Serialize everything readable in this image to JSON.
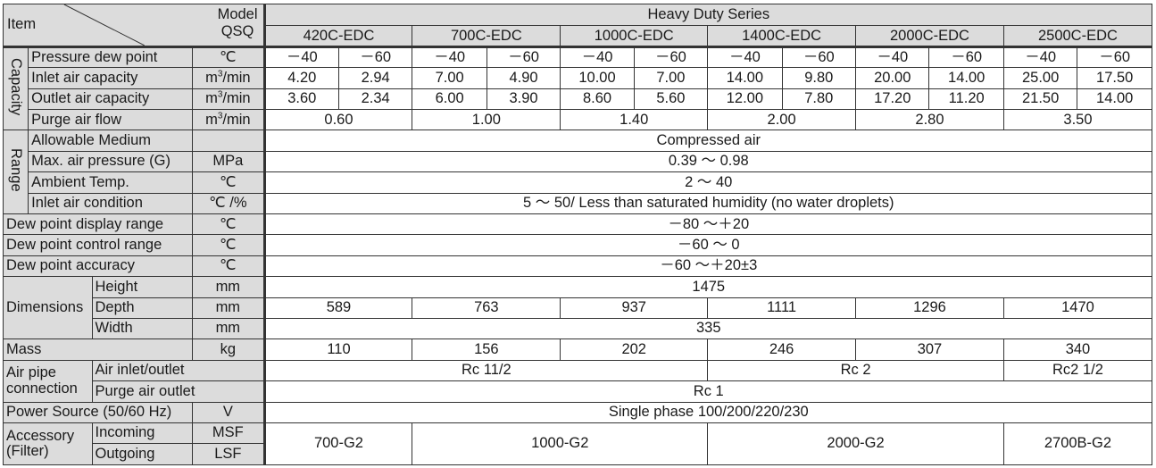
{
  "header": {
    "item": "Item",
    "model": "Model",
    "model_code": "QSQ",
    "series": "Heavy Duty Series",
    "models": [
      "420C-EDC",
      "700C-EDC",
      "1000C-EDC",
      "1400C-EDC",
      "2000C-EDC",
      "2500C-EDC"
    ]
  },
  "groups": {
    "capacity": "Capacity",
    "range": "Range",
    "dimensions": "Dimensions",
    "air_pipe_1": "Air pipe",
    "air_pipe_2": "connection",
    "accessory_1": "Accessory",
    "accessory_2": "(Filter)"
  },
  "rows": {
    "dew_point": {
      "label": "Pressure dew point",
      "unit": "℃",
      "values": [
        "－40",
        "－60",
        "－40",
        "－60",
        "－40",
        "－60",
        "－40",
        "－60",
        "－40",
        "－60",
        "－40",
        "－60"
      ]
    },
    "inlet": {
      "label": "Inlet air capacity",
      "unit_base": "m",
      "unit_sup": "3",
      "unit_rest": "/min",
      "values": [
        "4.20",
        "2.94",
        "7.00",
        "4.90",
        "10.00",
        "7.00",
        "14.00",
        "9.80",
        "20.00",
        "14.00",
        "25.00",
        "17.50"
      ]
    },
    "outlet": {
      "label": "Outlet air capacity",
      "unit_base": "m",
      "unit_sup": "3",
      "unit_rest": "/min",
      "values": [
        "3.60",
        "2.34",
        "6.00",
        "3.90",
        "8.60",
        "5.60",
        "12.00",
        "7.80",
        "17.20",
        "11.20",
        "21.50",
        "14.00"
      ]
    },
    "purge": {
      "label": "Purge air flow",
      "unit_base": "m",
      "unit_sup": "3",
      "unit_rest": "/min",
      "values": [
        "0.60",
        "1.00",
        "1.40",
        "2.00",
        "2.80",
        "3.50"
      ]
    },
    "medium": {
      "label": "Allowable Medium",
      "unit": "",
      "value": "Compressed air"
    },
    "pressure": {
      "label": "Max. air pressure (G)",
      "unit": "MPa",
      "value": "0.39 ～ 0.98"
    },
    "ambient": {
      "label": "Ambient Temp.",
      "unit": "℃",
      "value": "2 ～ 40"
    },
    "inlet_cond": {
      "label": "Inlet air condition",
      "unit": "℃ /%",
      "value": "5 ～ 50/ Less than saturated humidity (no water droplets)"
    },
    "display_range": {
      "label": "Dew point display range",
      "unit": "℃",
      "value": "－80 ～＋20"
    },
    "control_range": {
      "label": "Dew point control range",
      "unit": "℃",
      "value": "－60 ～ 0"
    },
    "accuracy": {
      "label": "Dew point accuracy",
      "unit": "℃",
      "value": "－60 ～＋20±3"
    },
    "height": {
      "label": "Height",
      "unit": "mm",
      "value": "1475"
    },
    "depth": {
      "label": "Depth",
      "unit": "mm",
      "values": [
        "589",
        "763",
        "937",
        "1111",
        "1296",
        "1470"
      ]
    },
    "width": {
      "label": "Width",
      "unit": "mm",
      "value": "335"
    },
    "mass": {
      "label": "Mass",
      "unit": "kg",
      "values": [
        "110",
        "156",
        "202",
        "246",
        "307",
        "340"
      ]
    },
    "pipe_inlet": {
      "label": "Air inlet/outlet",
      "values": [
        "Rc 11/2",
        "Rc 2",
        "Rc2 1/2"
      ]
    },
    "pipe_purge": {
      "label": "Purge air outlet",
      "value": "Rc 1"
    },
    "power": {
      "label": "Power Source (50/60 Hz)",
      "unit": "V",
      "value": "Single phase 100/200/220/230"
    },
    "incoming": {
      "label": "Incoming",
      "unit": "MSF"
    },
    "outgoing": {
      "label": "Outgoing",
      "unit": "LSF"
    },
    "filter_values": [
      "700-G2",
      "1000-G2",
      "2000-G2",
      "2700B-G2"
    ]
  }
}
